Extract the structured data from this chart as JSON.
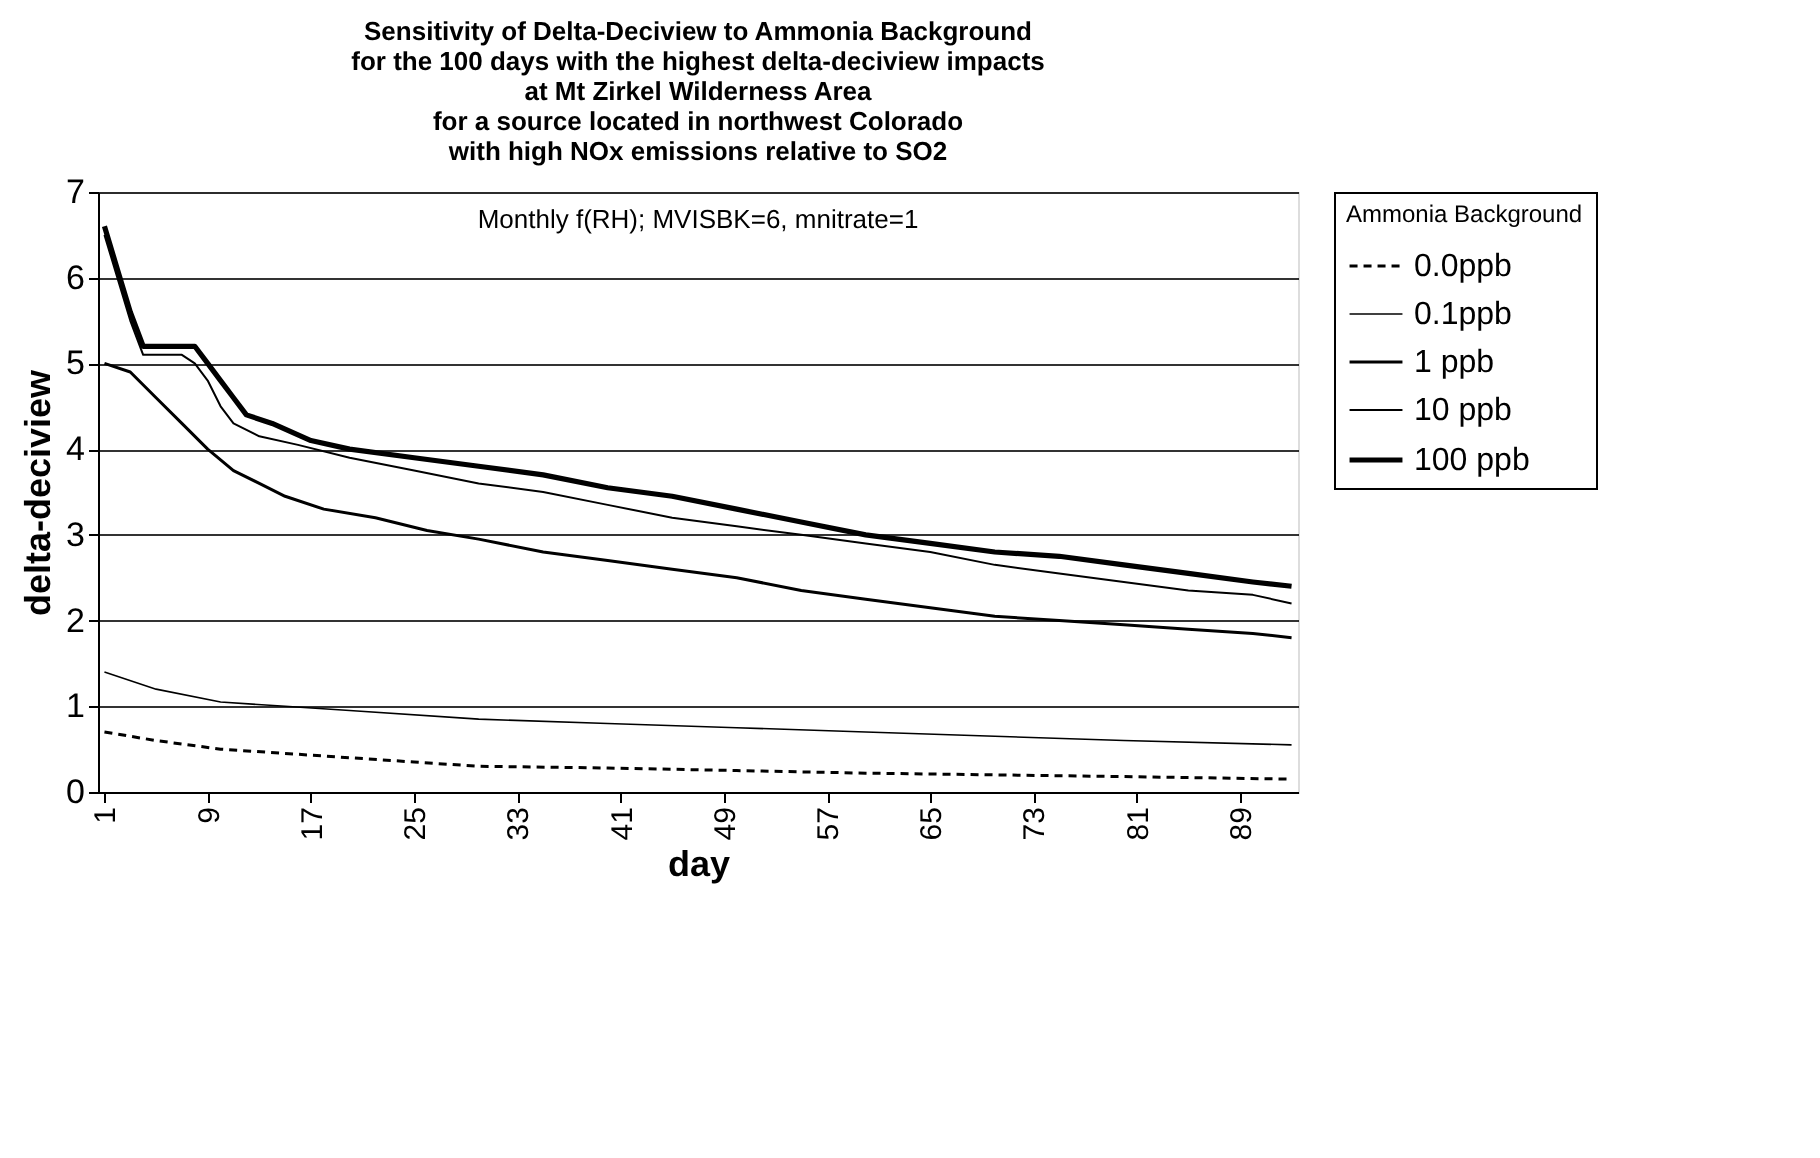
{
  "chart_data": {
    "type": "line",
    "title": "Sensitivity of Delta-Deciview to Ammonia Background\nfor the 100 days with the highest delta-deciview impacts\nat Mt Zirkel Wilderness Area\nfor a source located in northwest Colorado\nwith high NOx emissions relative to SO2",
    "xlabel": "day",
    "ylabel": "delta-deciview",
    "legend_title": "Ammonia Background",
    "annotations": [
      "Monthly f(RH); MVISBK=6, mnitrate=1"
    ],
    "xlim": [
      0.5,
      93.5
    ],
    "xticks": [
      1,
      9,
      17,
      25,
      33,
      41,
      49,
      57,
      65,
      73,
      81,
      89
    ],
    "ylim": [
      0,
      7
    ],
    "yticks": [
      0,
      1,
      2,
      3,
      4,
      5,
      6,
      7
    ],
    "grid": "y",
    "legend": "right",
    "marker": "none",
    "series": [
      {
        "name": "0.0ppb",
        "color": "#000000",
        "line_style": "dashed",
        "x": [
          1,
          5,
          10,
          15,
          20,
          25,
          30,
          40,
          50,
          60,
          70,
          80,
          93
        ],
        "values": [
          0.7,
          0.6,
          0.5,
          0.45,
          0.4,
          0.35,
          0.3,
          0.28,
          0.25,
          0.22,
          0.2,
          0.18,
          0.15
        ]
      },
      {
        "name": "0.1ppb",
        "color": "#000000",
        "line_style": "solid",
        "x": [
          1,
          5,
          10,
          15,
          20,
          30,
          40,
          50,
          60,
          70,
          80,
          93
        ],
        "values": [
          1.4,
          1.2,
          1.05,
          1.0,
          0.95,
          0.85,
          0.8,
          0.75,
          0.7,
          0.65,
          0.6,
          0.55
        ]
      },
      {
        "name": "1 ppb",
        "color": "#000000",
        "line_style": "solid",
        "x": [
          1,
          3,
          5,
          7,
          9,
          11,
          13,
          15,
          18,
          22,
          26,
          30,
          35,
          40,
          45,
          50,
          55,
          60,
          65,
          70,
          75,
          80,
          85,
          90,
          93
        ],
        "values": [
          5.0,
          4.9,
          4.6,
          4.3,
          4.0,
          3.75,
          3.6,
          3.45,
          3.3,
          3.2,
          3.05,
          2.95,
          2.8,
          2.7,
          2.6,
          2.5,
          2.35,
          2.25,
          2.15,
          2.05,
          2.0,
          1.95,
          1.9,
          1.85,
          1.8
        ]
      },
      {
        "name": "10 ppb",
        "color": "#000000",
        "line_style": "solid",
        "x": [
          1,
          2,
          3,
          4,
          7,
          8,
          9,
          10,
          11,
          13,
          16,
          20,
          25,
          30,
          35,
          40,
          45,
          50,
          55,
          60,
          65,
          70,
          75,
          80,
          85,
          90,
          93
        ],
        "values": [
          6.5,
          6.0,
          5.5,
          5.1,
          5.1,
          5.0,
          4.8,
          4.5,
          4.3,
          4.15,
          4.05,
          3.9,
          3.75,
          3.6,
          3.5,
          3.35,
          3.2,
          3.1,
          3.0,
          2.9,
          2.8,
          2.65,
          2.55,
          2.45,
          2.35,
          2.3,
          2.2
        ]
      },
      {
        "name": "100 ppb",
        "color": "#000000",
        "line_style": "solid",
        "x": [
          1,
          2,
          3,
          4,
          8,
          9,
          10,
          11,
          12,
          14,
          17,
          20,
          25,
          30,
          35,
          40,
          45,
          50,
          55,
          60,
          65,
          70,
          75,
          80,
          85,
          90,
          93
        ],
        "values": [
          6.6,
          6.1,
          5.6,
          5.2,
          5.2,
          5.0,
          4.8,
          4.6,
          4.4,
          4.3,
          4.1,
          4.0,
          3.9,
          3.8,
          3.7,
          3.55,
          3.45,
          3.3,
          3.15,
          3.0,
          2.9,
          2.8,
          2.75,
          2.65,
          2.55,
          2.45,
          2.4
        ]
      }
    ]
  }
}
